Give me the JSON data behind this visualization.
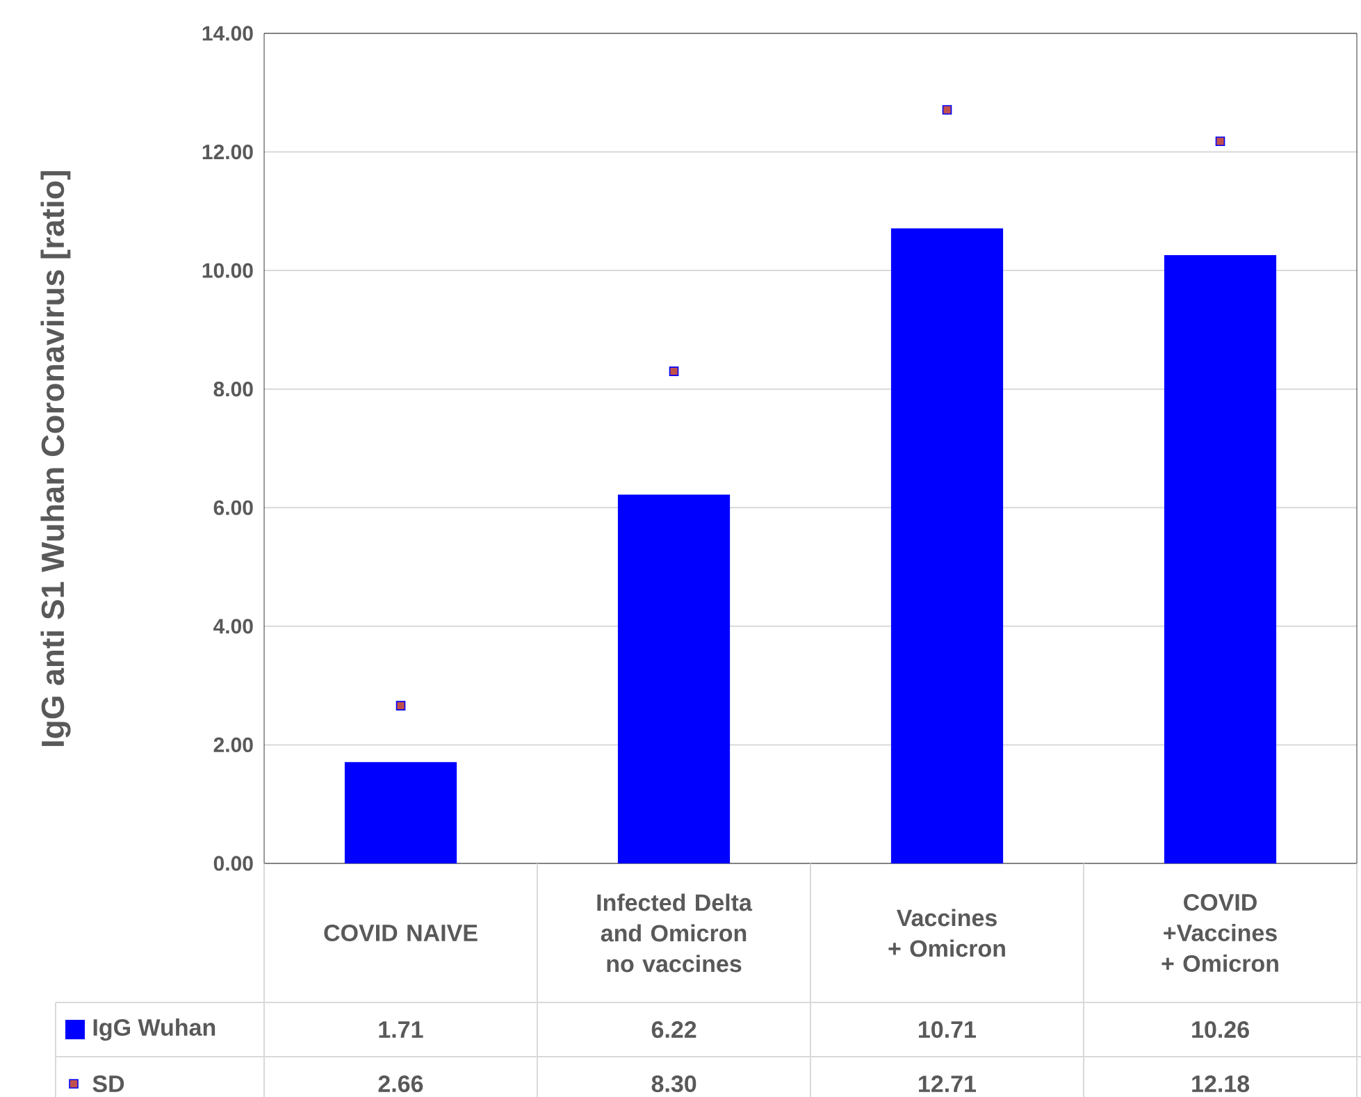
{
  "chart_data": {
    "type": "bar",
    "ylabel": "IgG anti S1 Wuhan Coronavirus [ratio]",
    "categories": [
      "COVID NAIVE",
      "Infected Delta and Omicron no vaccines",
      "Vaccines + Omicron",
      "COVID +Vaccines + Omicron"
    ],
    "series": [
      {
        "name": "IgG Wuhan",
        "color": "#0000ff",
        "values": [
          1.71,
          6.22,
          10.71,
          10.26
        ],
        "value_labels": [
          "1.71",
          "6.22",
          "10.71",
          "10.26"
        ]
      },
      {
        "name": "SD",
        "type": "scatter",
        "color": "#c0504d",
        "x": [
          "COVID NAIVE",
          "Infected Delta and Omicron no vaccines",
          "Vaccines + Omicron",
          "COVID +Vaccines + Omicron"
        ],
        "values": [
          2.66,
          8.3,
          12.71,
          12.18
        ],
        "value_labels": [
          "2.66",
          "8.30",
          "12.71",
          "12.18"
        ]
      }
    ],
    "ylim": [
      0,
      14
    ],
    "yticks": [
      {
        "value": 0,
        "label": "0.00"
      },
      {
        "value": 2,
        "label": "2.00"
      },
      {
        "value": 4,
        "label": "4.00"
      },
      {
        "value": 6,
        "label": "6.00"
      },
      {
        "value": 8,
        "label": "8.00"
      },
      {
        "value": 10,
        "label": "10.00"
      },
      {
        "value": 12,
        "label": "12.00"
      },
      {
        "value": 14,
        "label": "14.00"
      }
    ],
    "grid": "y",
    "legend": "bottom",
    "marker": "square"
  }
}
